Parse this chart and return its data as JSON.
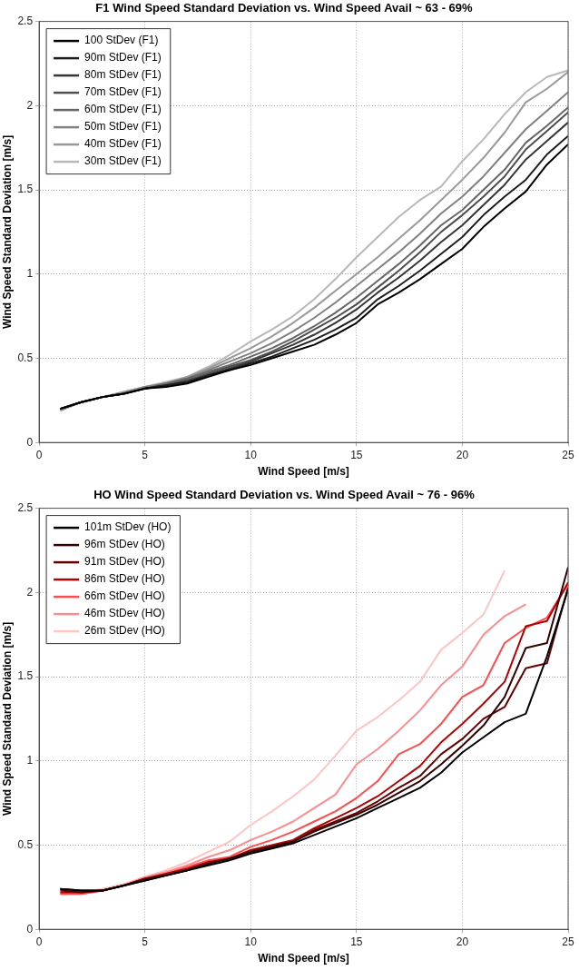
{
  "chart_data": [
    {
      "type": "line",
      "title": "F1 Wind Speed Standard Deviation vs. Wind Speed Avail ~ 63 - 69%",
      "xlabel": "Wind Speed [m/s]",
      "ylabel": "Wind Speed Standard Deviation [m/s]",
      "x": [
        1,
        2,
        3,
        4,
        5,
        6,
        7,
        8,
        9,
        10,
        11,
        12,
        13,
        14,
        15,
        16,
        17,
        18,
        19,
        20,
        21,
        22,
        23,
        24,
        25
      ],
      "xlim": [
        0,
        25
      ],
      "xticks": [
        0,
        5,
        10,
        15,
        20,
        25
      ],
      "ylim": [
        0,
        2.5
      ],
      "yticks": [
        0,
        0.5,
        1,
        1.5,
        2,
        2.5
      ],
      "grid": true,
      "legend": "top left",
      "marker": "none",
      "line_style": "solid",
      "series": [
        {
          "name": "100 StDev (F1)",
          "color": "#000000",
          "values": [
            0.2,
            0.24,
            0.27,
            0.29,
            0.32,
            0.33,
            0.35,
            0.39,
            0.43,
            0.46,
            0.5,
            0.54,
            0.58,
            0.64,
            0.71,
            0.82,
            0.89,
            0.97,
            1.06,
            1.15,
            1.28,
            1.39,
            1.49,
            1.65,
            1.77
          ]
        },
        {
          "name": "90m StDev (F1)",
          "color": "#1e1e1e",
          "values": [
            0.2,
            0.24,
            0.27,
            0.29,
            0.32,
            0.34,
            0.36,
            0.4,
            0.43,
            0.47,
            0.51,
            0.56,
            0.61,
            0.67,
            0.74,
            0.85,
            0.93,
            1.02,
            1.12,
            1.22,
            1.35,
            1.46,
            1.56,
            1.71,
            1.82
          ]
        },
        {
          "name": "80m StDev (F1)",
          "color": "#363636",
          "values": [
            0.2,
            0.24,
            0.27,
            0.29,
            0.32,
            0.34,
            0.36,
            0.4,
            0.44,
            0.48,
            0.53,
            0.58,
            0.64,
            0.71,
            0.79,
            0.89,
            0.98,
            1.08,
            1.19,
            1.29,
            1.41,
            1.53,
            1.68,
            1.79,
            1.9
          ]
        },
        {
          "name": "70m StDev (F1)",
          "color": "#4e4e4e",
          "values": [
            0.2,
            0.24,
            0.27,
            0.29,
            0.32,
            0.34,
            0.37,
            0.41,
            0.45,
            0.49,
            0.54,
            0.6,
            0.67,
            0.74,
            0.82,
            0.92,
            1.02,
            1.13,
            1.25,
            1.35,
            1.46,
            1.58,
            1.74,
            1.85,
            1.96
          ]
        },
        {
          "name": "60m StDev (F1)",
          "color": "#666666",
          "values": [
            0.2,
            0.24,
            0.27,
            0.29,
            0.32,
            0.35,
            0.38,
            0.42,
            0.46,
            0.51,
            0.56,
            0.62,
            0.69,
            0.77,
            0.86,
            0.96,
            1.06,
            1.17,
            1.29,
            1.38,
            1.5,
            1.62,
            1.78,
            1.88,
            1.99
          ]
        },
        {
          "name": "50m StDev (F1)",
          "color": "#808080",
          "values": [
            0.2,
            0.24,
            0.27,
            0.29,
            0.33,
            0.35,
            0.38,
            0.43,
            0.48,
            0.53,
            0.59,
            0.66,
            0.74,
            0.83,
            0.93,
            1.03,
            1.13,
            1.24,
            1.36,
            1.46,
            1.58,
            1.72,
            1.86,
            1.97,
            2.08
          ]
        },
        {
          "name": "40m StDev (F1)",
          "color": "#999999",
          "values": [
            0.19,
            0.24,
            0.27,
            0.3,
            0.33,
            0.35,
            0.39,
            0.44,
            0.5,
            0.56,
            0.63,
            0.71,
            0.8,
            0.9,
            1.0,
            1.1,
            1.21,
            1.32,
            1.44,
            1.56,
            1.69,
            1.84,
            2.02,
            2.1,
            2.2
          ]
        },
        {
          "name": "30m StDev (F1)",
          "color": "#b8b8b8",
          "values": [
            0.19,
            0.24,
            0.27,
            0.3,
            0.33,
            0.36,
            0.39,
            0.45,
            0.52,
            0.6,
            0.67,
            0.75,
            0.85,
            0.97,
            1.1,
            1.22,
            1.34,
            1.44,
            1.52,
            1.67,
            1.8,
            1.95,
            2.08,
            2.17,
            2.21
          ]
        }
      ]
    },
    {
      "type": "line",
      "title": "HO Wind Speed Standard Deviation vs. Wind Speed Avail ~ 76 - 96%",
      "xlabel": "Wind Speed [m/s]",
      "ylabel": "Wind Speed Standard Deviation [m/s]",
      "x": [
        1,
        2,
        3,
        4,
        5,
        6,
        7,
        8,
        9,
        10,
        11,
        12,
        13,
        14,
        15,
        16,
        17,
        18,
        19,
        20,
        21,
        22,
        23,
        24,
        25
      ],
      "xlim": [
        0,
        25
      ],
      "xticks": [
        0,
        5,
        10,
        15,
        20,
        25
      ],
      "ylim": [
        0,
        2.5
      ],
      "yticks": [
        0,
        0.5,
        1,
        1.5,
        2,
        2.5
      ],
      "grid": true,
      "legend": "top left",
      "marker": "none",
      "line_style": "solid",
      "series": [
        {
          "name": "101m StDev (HO)",
          "color": "#000000",
          "values": [
            0.24,
            0.23,
            0.23,
            0.26,
            0.29,
            0.32,
            0.35,
            0.38,
            0.41,
            0.45,
            0.48,
            0.51,
            0.56,
            0.61,
            0.66,
            0.72,
            0.78,
            0.84,
            0.93,
            1.05,
            1.14,
            1.23,
            1.28,
            1.62,
            2.02
          ]
        },
        {
          "name": "96m StDev (HO)",
          "color": "#330000",
          "values": [
            0.24,
            0.23,
            0.23,
            0.26,
            0.29,
            0.32,
            0.35,
            0.39,
            0.42,
            0.46,
            0.49,
            0.52,
            0.58,
            0.63,
            0.68,
            0.74,
            0.81,
            0.88,
            0.98,
            1.09,
            1.21,
            1.38,
            1.67,
            1.7,
            2.15
          ]
        },
        {
          "name": "91m StDev (HO)",
          "color": "#660000",
          "values": [
            0.23,
            0.22,
            0.23,
            0.26,
            0.3,
            0.32,
            0.35,
            0.39,
            0.42,
            0.46,
            0.49,
            0.52,
            0.59,
            0.64,
            0.69,
            0.76,
            0.84,
            0.91,
            1.04,
            1.13,
            1.25,
            1.32,
            1.55,
            1.58,
            2.03
          ]
        },
        {
          "name": "86m StDev (HO)",
          "color": "#b30000",
          "values": [
            0.22,
            0.22,
            0.23,
            0.26,
            0.3,
            0.33,
            0.36,
            0.4,
            0.42,
            0.47,
            0.5,
            0.53,
            0.6,
            0.66,
            0.72,
            0.79,
            0.88,
            0.97,
            1.11,
            1.22,
            1.34,
            1.47,
            1.8,
            1.83,
            2.06
          ]
        },
        {
          "name": "66m StDev (HO)",
          "color": "#ff4d4d",
          "values": [
            0.21,
            0.21,
            0.23,
            0.26,
            0.3,
            0.33,
            0.37,
            0.41,
            0.43,
            0.49,
            0.53,
            0.58,
            0.64,
            0.7,
            0.78,
            0.88,
            1.04,
            1.1,
            1.22,
            1.38,
            1.45,
            1.7,
            1.79,
            1.85,
            2.05
          ]
        },
        {
          "name": "46m StDev (HO)",
          "color": "#ff8c8c",
          "values": [
            0.21,
            0.21,
            0.23,
            0.26,
            0.31,
            0.34,
            0.38,
            0.43,
            0.47,
            0.53,
            0.58,
            0.64,
            0.72,
            0.8,
            0.98,
            1.07,
            1.18,
            1.3,
            1.45,
            1.56,
            1.75,
            1.86,
            1.93,
            null,
            null
          ]
        },
        {
          "name": "26m StDev (HO)",
          "color": "#ffc4c4",
          "values": [
            0.22,
            0.22,
            0.24,
            0.27,
            0.31,
            0.35,
            0.4,
            0.46,
            0.52,
            0.62,
            0.7,
            0.79,
            0.89,
            1.03,
            1.18,
            1.26,
            1.36,
            1.47,
            1.66,
            1.76,
            1.87,
            2.13,
            null,
            null,
            null
          ]
        }
      ]
    }
  ]
}
